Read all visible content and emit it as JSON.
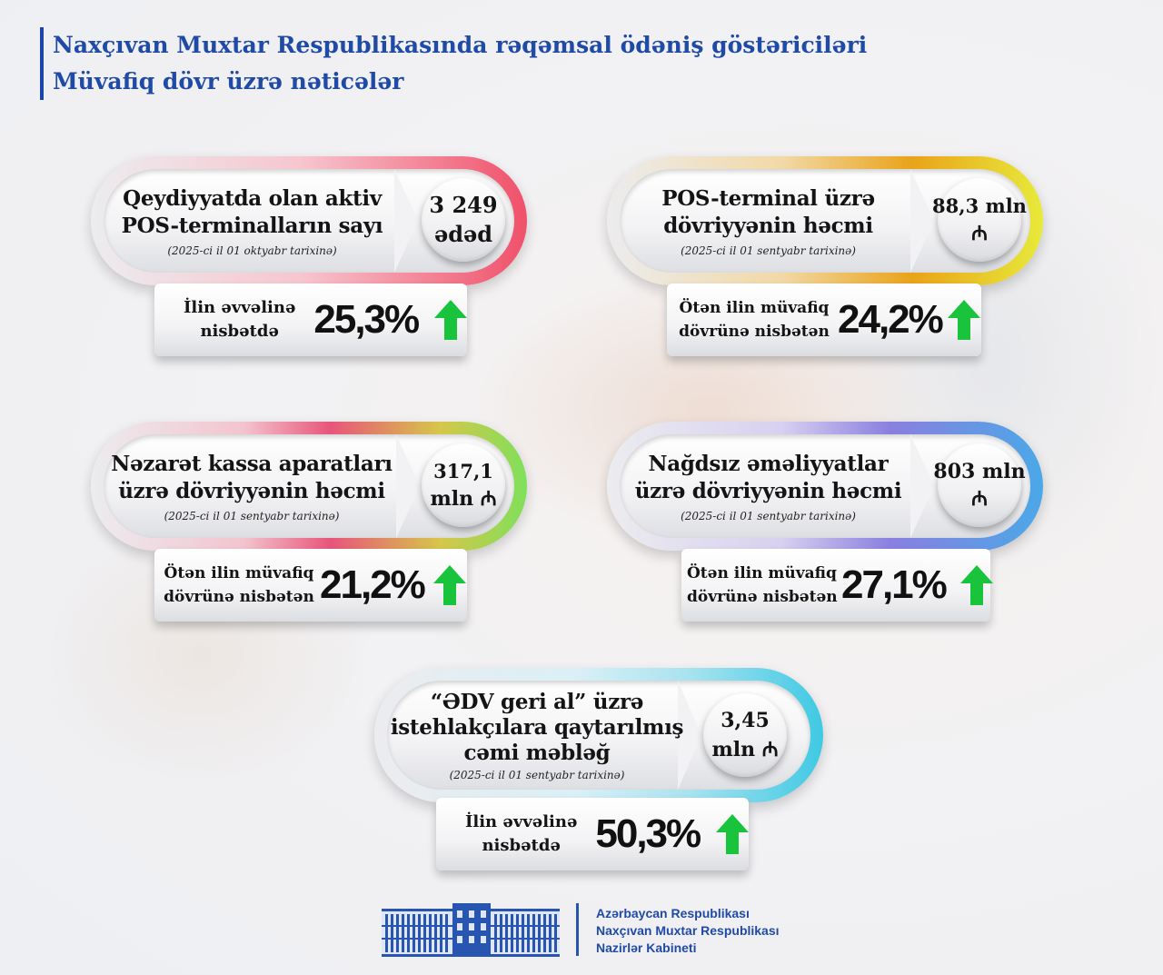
{
  "header": {
    "title_line1": "Naxçıvan Muxtar Respublikasında rəqəmsal ödəniş göstəriciləri",
    "title_line2": "Müvafiq dövr üzrə nəticələr"
  },
  "cards": [
    {
      "label_line1": "Qeydiyyatda olan aktiv",
      "label_line2": "POS-terminalların sayı",
      "date": "(2025-ci il 01 oktyabr tarixinə)",
      "value": "3 249",
      "unit": "ədəd",
      "comparison_line1": "İlin əvvəlinə",
      "comparison_line2": "nisbətdə",
      "percent": "25,3%",
      "accent_color": "#f0506a",
      "accent_light": "#ffd0d8"
    },
    {
      "label_line1": "POS-terminal üzrə",
      "label_line2": "dövriyyənin həcmi",
      "date": "(2025-ci il 01 sentyabr tarixinə)",
      "value": "88,3 mln",
      "unit": "₼",
      "comparison_line1": "Ötən ilin müvafiq",
      "comparison_line2": "dövrünə nisbətən",
      "percent": "24,2%",
      "accent_color": "#e9a31a",
      "accent_light": "#f7f25a"
    },
    {
      "label_line1": "Nəzarət kassa aparatları",
      "label_line2": "üzrə dövriyyənin həcmi",
      "date": "(2025-ci il 01 sentyabr tarixinə)",
      "value": "317,1",
      "unit": "mln ₼",
      "comparison_line1": "Ötən ilin müvafiq",
      "comparison_line2": "dövrünə nisbətən",
      "percent": "21,2%",
      "accent_color": "#e8557a",
      "accent_light": "#7fe05a"
    },
    {
      "label_line1": "Nağdsız əməliyyatlar",
      "label_line2": "üzrə dövriyyənin həcmi",
      "date": "(2025-ci il 01 sentyabr tarixinə)",
      "value": "803 mln",
      "unit": "₼",
      "comparison_line1": "Ötən ilin müvafiq",
      "comparison_line2": "dövrünə nisbətən",
      "percent": "27,1%",
      "accent_color": "#8a7fe0",
      "accent_light": "#4aa8e8"
    },
    {
      "label_line1": "“ƏDV geri al” üzrə",
      "label_line2": "istehlakçılara qaytarılmış",
      "label_line3": "cəmi məbləğ",
      "date": "(2025-ci il 01 sentyabr tarixinə)",
      "value": "3,45",
      "unit": "mln ₼",
      "comparison_line1": "İlin əvvəlinə",
      "comparison_line2": "nisbətdə",
      "percent": "50,3%",
      "accent_color": "#a8e3f0",
      "accent_light": "#3fc9e3"
    }
  ],
  "footer": {
    "line1": "Azərbaycan Respublikası",
    "line2": "Naxçıvan Muxtar Respublikası",
    "line3": "Nazirlər Kabineti"
  },
  "colors": {
    "title_blue": "#1f4aa6",
    "arrow_green": "#19c43c"
  }
}
